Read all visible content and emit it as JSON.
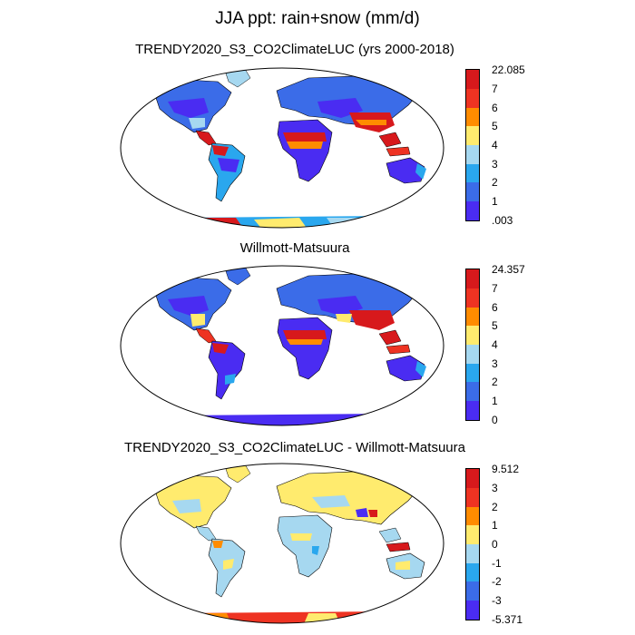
{
  "main_title": "JJA ppt: rain+snow (mm/d)",
  "panels": [
    {
      "title": "TRENDY2020_S3_CO2ClimateLUC (yrs 2000-2018)",
      "colorbar": {
        "labels": [
          "22.085",
          "7",
          "6",
          "5",
          "4",
          "3",
          "2",
          "1",
          ".003"
        ],
        "colors": [
          "#d7191c",
          "#ee3322",
          "#ff8c00",
          "#ffeb6e",
          "#a6d8f0",
          "#2aa7ee",
          "#3b6ce8",
          "#4a2cf2"
        ]
      }
    },
    {
      "title": "Willmott-Matsuura",
      "colorbar": {
        "labels": [
          "24.357",
          "7",
          "6",
          "5",
          "4",
          "3",
          "2",
          "1",
          "0"
        ],
        "colors": [
          "#d7191c",
          "#ee3322",
          "#ff8c00",
          "#ffeb6e",
          "#a6d8f0",
          "#2aa7ee",
          "#3b6ce8",
          "#4a2cf2"
        ]
      }
    },
    {
      "title": "TRENDY2020_S3_CO2ClimateLUC - Willmott-Matsuura",
      "colorbar": {
        "labels": [
          "9.512",
          "3",
          "2",
          "1",
          "0",
          "-1",
          "-2",
          "-3",
          "-5.371"
        ],
        "colors": [
          "#d7191c",
          "#ee3322",
          "#ff8c00",
          "#ffeb6e",
          "#a6d8f0",
          "#2aa7ee",
          "#3b6ce8",
          "#4a2cf2"
        ]
      }
    }
  ]
}
